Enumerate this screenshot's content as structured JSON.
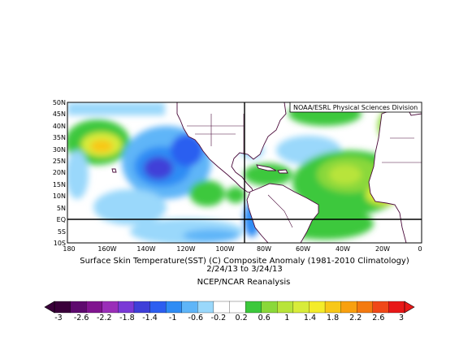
{
  "map": {
    "credit": "NOAA/ESRL Physical Sciences Division",
    "latitude_labels": [
      "50N",
      "45N",
      "40N",
      "35N",
      "30N",
      "25N",
      "20N",
      "15N",
      "10N",
      "5N",
      "EQ",
      "5S",
      "10S"
    ],
    "longitude_labels": [
      "180",
      "160W",
      "140W",
      "120W",
      "100W",
      "80W",
      "60W",
      "40W",
      "20W",
      "0"
    ],
    "variable": "Surface Skin Temperature(SST) (C) Composite Anomaly (1981-2010 Climatology)",
    "period": "2/24/13  to 3/24/13",
    "source": "NCEP/NCAR Reanalysis"
  },
  "colorbar": {
    "labels": [
      "-3",
      "-2.6",
      "-2.2",
      "-1.8",
      "-1.4",
      "-1",
      "-0.6",
      "-0.2",
      "0.2",
      "0.6",
      "1",
      "1.4",
      "1.8",
      "2.2",
      "2.6",
      "3"
    ],
    "colors": [
      "#3a003a",
      "#5e0a6e",
      "#80148f",
      "#9a2fb8",
      "#7a3ad6",
      "#3f3fd8",
      "#2c5ef0",
      "#2f8cf4",
      "#5fb5f8",
      "#9ad8fb",
      "#ffffff",
      "#ffffff",
      "#3cc83c",
      "#8ad83a",
      "#b8e43a",
      "#d8ec3a",
      "#f4ec2a",
      "#f8c818",
      "#f8a010",
      "#f47a10",
      "#f04818",
      "#e81818"
    ]
  },
  "colors": {
    "land_outline": "#4a0a3a",
    "frame": "#000000"
  }
}
